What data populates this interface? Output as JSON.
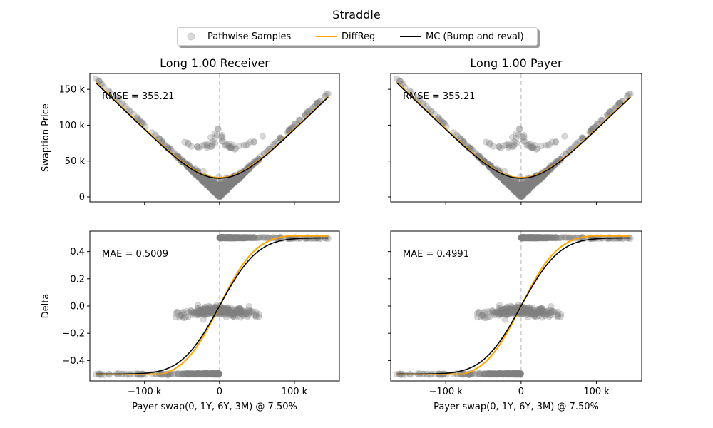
{
  "figure": {
    "title": "Straddle"
  },
  "legend": [
    {
      "label": "Pathwise Samples",
      "kind": "marker",
      "color": "#808080"
    },
    {
      "label": "DiffReg",
      "kind": "line",
      "color": "#ffa500"
    },
    {
      "label": "MC (Bump and reval)",
      "kind": "line",
      "color": "#000000"
    }
  ],
  "colors": {
    "samples": "#808080",
    "diffreg": "#ffa500",
    "mc": "#000000",
    "zero_line": "#cccccc"
  },
  "chart_data": [
    {
      "type": "scatter",
      "title": "Long 1.00 Receiver",
      "ylabel": "Swaption Price",
      "xlabel": "",
      "annotation": "RMSE = 355.21",
      "xlim": [
        -173000,
        160000
      ],
      "ylim": [
        -7000,
        172000
      ],
      "xticks": [
        {
          "v": -100000,
          "label": "−100 k"
        },
        {
          "v": 0,
          "label": "0"
        },
        {
          "v": 100000,
          "label": "100 k"
        }
      ],
      "yticks": [
        {
          "v": 0,
          "label": "0"
        },
        {
          "v": 50000,
          "label": "50 k"
        },
        {
          "v": 100000,
          "label": "100 k"
        },
        {
          "v": 150000,
          "label": "150 k"
        }
      ],
      "show_xticklabels": false,
      "show_yticklabels": true,
      "metric": "price"
    },
    {
      "type": "scatter",
      "title": "Long 1.00 Payer",
      "ylabel": "",
      "xlabel": "",
      "annotation": "RMSE = 355.21",
      "xlim": [
        -173000,
        160000
      ],
      "ylim": [
        -7000,
        172000
      ],
      "xticks": [
        {
          "v": -100000,
          "label": "−100 k"
        },
        {
          "v": 0,
          "label": "0"
        },
        {
          "v": 100000,
          "label": "100 k"
        }
      ],
      "yticks": [
        {
          "v": 0,
          "label": "0"
        },
        {
          "v": 50000,
          "label": "50 k"
        },
        {
          "v": 100000,
          "label": "100 k"
        },
        {
          "v": 150000,
          "label": "150 k"
        }
      ],
      "show_xticklabels": false,
      "show_yticklabels": false,
      "metric": "price"
    },
    {
      "type": "scatter",
      "title": "",
      "ylabel": "Delta",
      "xlabel": "Payer swap(0, 1Y, 6Y, 3M) @ 7.50%",
      "annotation": "MAE = 0.5009",
      "xlim": [
        -173000,
        160000
      ],
      "ylim": [
        -0.55,
        0.55
      ],
      "xticks": [
        {
          "v": -100000,
          "label": "−100 k"
        },
        {
          "v": 0,
          "label": "0"
        },
        {
          "v": 100000,
          "label": "100 k"
        }
      ],
      "yticks": [
        {
          "v": -0.4,
          "label": "−0.4"
        },
        {
          "v": -0.2,
          "label": "−0.2"
        },
        {
          "v": 0,
          "label": "0.0"
        },
        {
          "v": 0.2,
          "label": "0.2"
        },
        {
          "v": 0.4,
          "label": "0.4"
        }
      ],
      "show_xticklabels": true,
      "show_yticklabels": true,
      "metric": "delta"
    },
    {
      "type": "scatter",
      "title": "",
      "ylabel": "",
      "xlabel": "Payer swap(0, 1Y, 6Y, 3M) @ 7.50%",
      "annotation": "MAE = 0.4991",
      "xlim": [
        -173000,
        160000
      ],
      "ylim": [
        -0.55,
        0.55
      ],
      "xticks": [
        {
          "v": -100000,
          "label": "−100 k"
        },
        {
          "v": 0,
          "label": "0"
        },
        {
          "v": 100000,
          "label": "100 k"
        }
      ],
      "yticks": [
        {
          "v": -0.4,
          "label": "−0.4"
        },
        {
          "v": -0.2,
          "label": "−0.2"
        },
        {
          "v": 0,
          "label": "0.0"
        },
        {
          "v": 0.2,
          "label": "0.2"
        },
        {
          "v": 0.4,
          "label": "0.4"
        }
      ],
      "show_xticklabels": true,
      "show_yticklabels": false,
      "metric": "delta"
    }
  ]
}
